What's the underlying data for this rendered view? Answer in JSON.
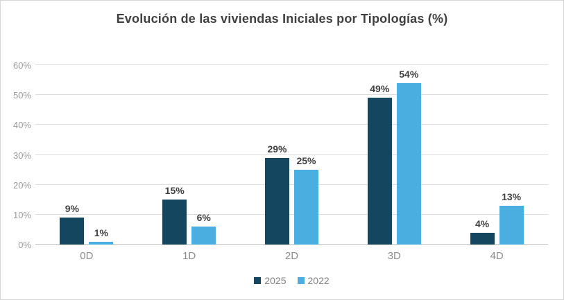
{
  "colors": {
    "series_2025": "#14475F",
    "series_2022": "#4BAEE0",
    "gridline": "#dcdcdc",
    "axis_line": "#c3c3c3",
    "title_text": "#404040",
    "data_label_text": "#404040",
    "axis_text": "#9a9a9a",
    "category_text": "#8c8c8c",
    "legend_text": "#7f7f7f",
    "frame_border": "#d6d6d6"
  },
  "chart_data": {
    "type": "bar",
    "title": "Evolución de las viviendas Iniciales por Tipologías (%)",
    "categories": [
      "0D",
      "1D",
      "2D",
      "3D",
      "4D"
    ],
    "series": [
      {
        "name": "2025",
        "color_key": "series_2025",
        "values": [
          9,
          15,
          29,
          49,
          4
        ]
      },
      {
        "name": "2022",
        "color_key": "series_2022",
        "values": [
          1,
          6,
          25,
          54,
          13
        ]
      }
    ],
    "xlabel": "",
    "ylabel": "",
    "ylim": [
      0,
      60
    ],
    "ytick_step": 10,
    "ytick_suffix": "%",
    "ytick_labels": [
      "0%",
      "10%",
      "20%",
      "30%",
      "40%",
      "50%",
      "60%"
    ],
    "grid": true,
    "data_labels": true,
    "data_label_suffix": "%",
    "legend_position": "bottom"
  },
  "legend": {
    "items": [
      {
        "label": "2025",
        "color_key": "series_2025"
      },
      {
        "label": "2022",
        "color_key": "series_2022"
      }
    ]
  }
}
